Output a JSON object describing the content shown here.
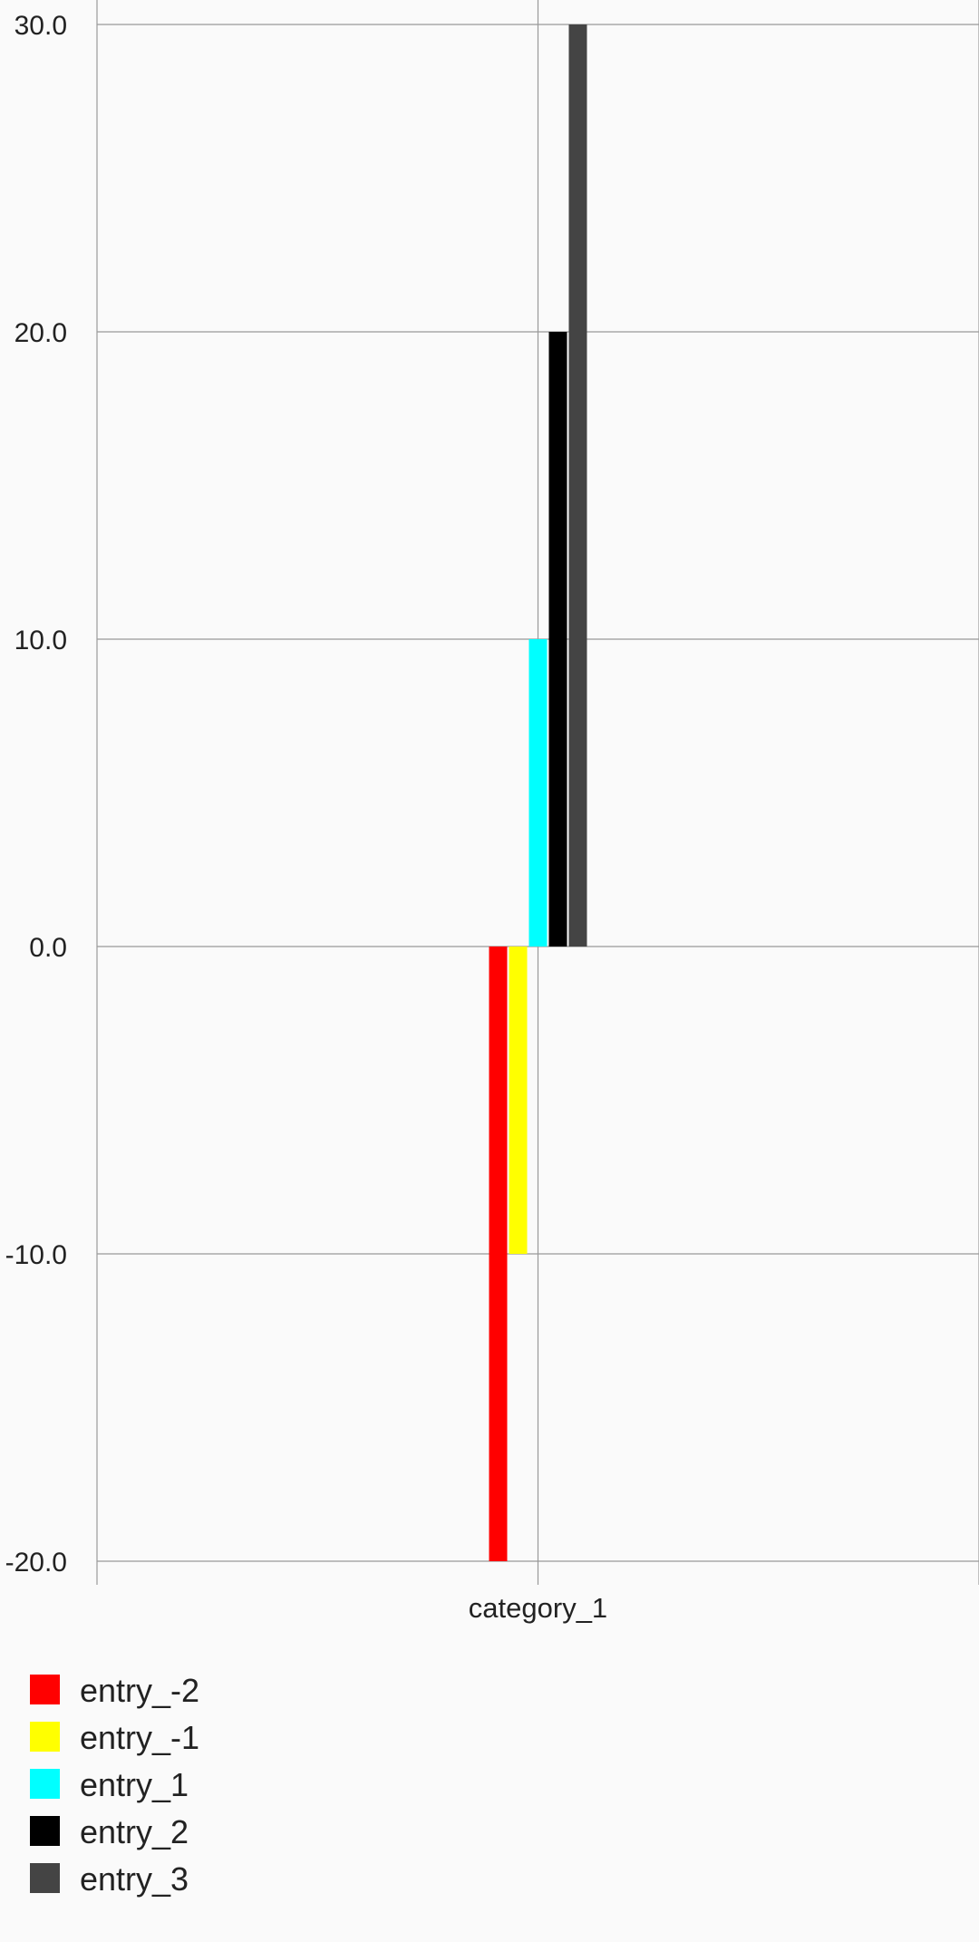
{
  "chart_data": {
    "type": "bar",
    "categories": [
      "category_1"
    ],
    "series": [
      {
        "name": "entry_-2",
        "values": [
          -20
        ],
        "color": "#ff0000"
      },
      {
        "name": "entry_-1",
        "values": [
          -10
        ],
        "color": "#ffff00"
      },
      {
        "name": "entry_1",
        "values": [
          10
        ],
        "color": "#00ffff"
      },
      {
        "name": "entry_2",
        "values": [
          20
        ],
        "color": "#000000"
      },
      {
        "name": "entry_3",
        "values": [
          30
        ],
        "color": "#444444"
      }
    ],
    "yticks": [
      "30.0",
      "20.0",
      "10.0",
      "0.0",
      "-10.0",
      "-20.0"
    ],
    "ylim": [
      -20,
      30
    ],
    "grid": true,
    "legend_position": "bottom-left"
  },
  "colors": {
    "background": "#fafafa",
    "grid": "#999999"
  }
}
